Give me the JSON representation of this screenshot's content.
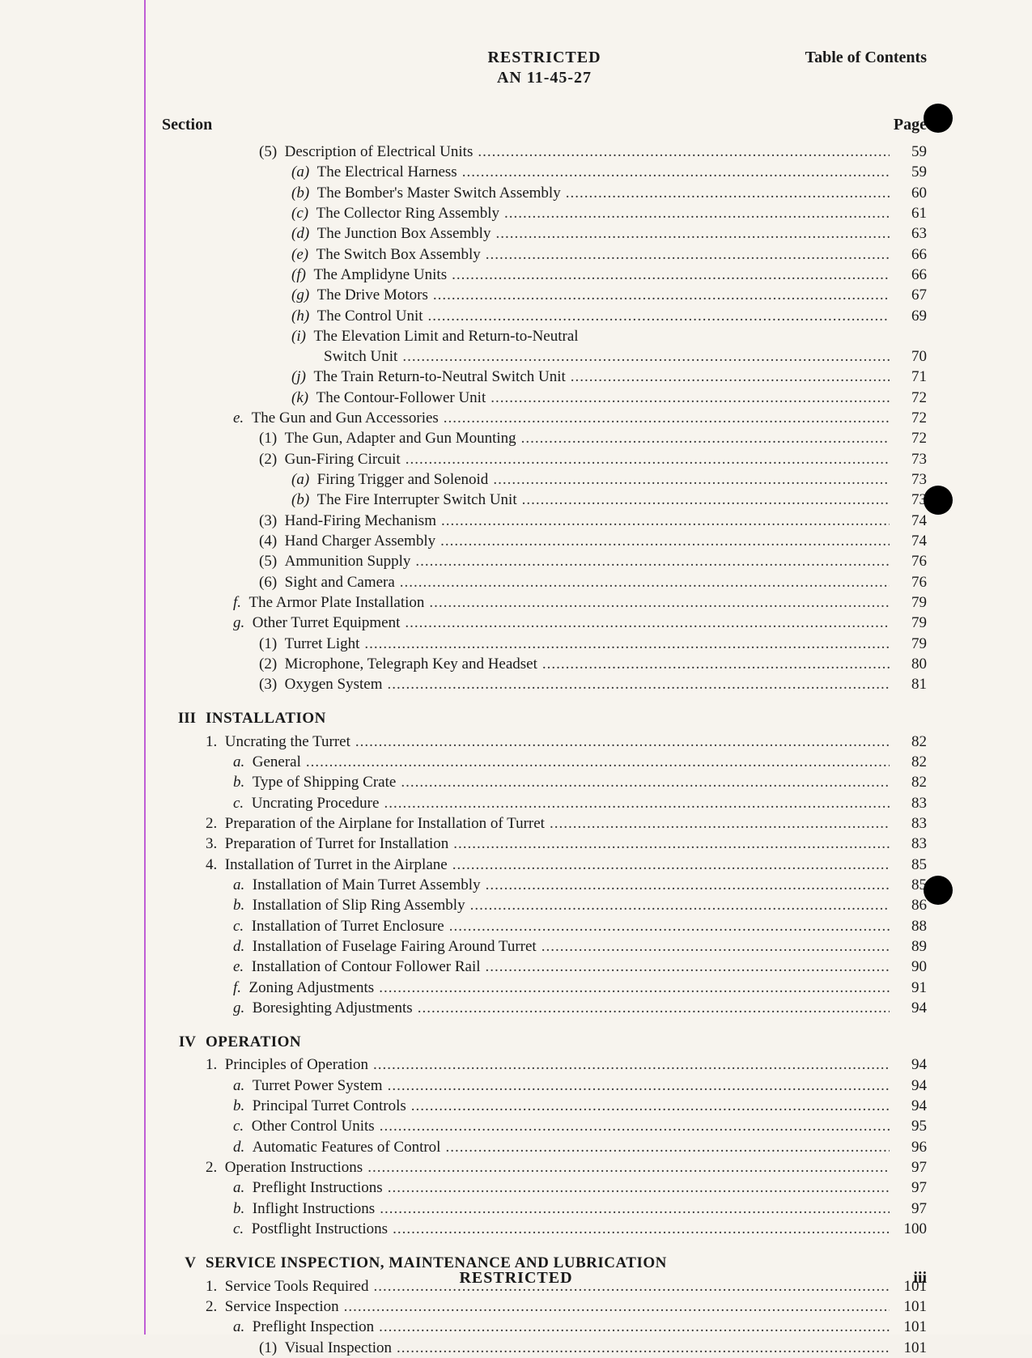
{
  "header": {
    "classification": "RESTRICTED",
    "doc_number": "AN 11-45-27",
    "right_label": "Table of Contents"
  },
  "columns": {
    "left": "Section",
    "right": "Page"
  },
  "footer": {
    "classification": "RESTRICTED",
    "page_number": "iii"
  },
  "sections": [
    {
      "roman": "",
      "title": "",
      "entries": [
        {
          "indent": 2,
          "label": "(5)",
          "title": "Description of Electrical Units",
          "page": "59",
          "label_style": ""
        },
        {
          "indent": 3,
          "label": "(a)",
          "title": "The Electrical Harness",
          "page": "59",
          "label_style": "italic"
        },
        {
          "indent": 3,
          "label": "(b)",
          "title": "The Bomber's Master Switch Assembly",
          "page": "60",
          "label_style": "italic"
        },
        {
          "indent": 3,
          "label": "(c)",
          "title": "The Collector Ring Assembly",
          "page": "61",
          "label_style": "italic"
        },
        {
          "indent": 3,
          "label": "(d)",
          "title": "The Junction Box Assembly",
          "page": "63",
          "label_style": "italic"
        },
        {
          "indent": 3,
          "label": "(e)",
          "title": "The Switch Box Assembly",
          "page": "66",
          "label_style": "italic"
        },
        {
          "indent": 3,
          "label": "(f)",
          "title": "The Amplidyne Units",
          "page": "66",
          "label_style": "italic"
        },
        {
          "indent": 3,
          "label": "(g)",
          "title": "The Drive Motors",
          "page": "67",
          "label_style": "italic"
        },
        {
          "indent": 3,
          "label": "(h)",
          "title": "The Control Unit",
          "page": "69",
          "label_style": "italic"
        },
        {
          "indent": 3,
          "label": "(i)",
          "title": "The Elevation Limit and Return-to-Neutral",
          "page": "",
          "label_style": "italic"
        },
        {
          "indent": 4,
          "label": "",
          "title": "Switch Unit",
          "page": "70",
          "label_style": ""
        },
        {
          "indent": 3,
          "label": "(j)",
          "title": "The Train Return-to-Neutral Switch Unit",
          "page": "71",
          "label_style": "italic"
        },
        {
          "indent": 3,
          "label": "(k)",
          "title": "The Contour-Follower Unit",
          "page": "72",
          "label_style": "italic"
        },
        {
          "indent": 1,
          "label": "e.",
          "title": "The Gun and Gun Accessories",
          "page": "72",
          "label_style": "italic"
        },
        {
          "indent": 2,
          "label": "(1)",
          "title": "The Gun, Adapter and Gun Mounting",
          "page": "72",
          "label_style": ""
        },
        {
          "indent": 2,
          "label": "(2)",
          "title": "Gun-Firing Circuit",
          "page": "73",
          "label_style": ""
        },
        {
          "indent": 3,
          "label": "(a)",
          "title": "Firing Trigger and Solenoid",
          "page": "73",
          "label_style": "italic"
        },
        {
          "indent": 3,
          "label": "(b)",
          "title": "The Fire Interrupter Switch Unit",
          "page": "73",
          "label_style": "italic"
        },
        {
          "indent": 2,
          "label": "(3)",
          "title": "Hand-Firing Mechanism",
          "page": "74",
          "label_style": ""
        },
        {
          "indent": 2,
          "label": "(4)",
          "title": "Hand Charger Assembly",
          "page": "74",
          "label_style": ""
        },
        {
          "indent": 2,
          "label": "(5)",
          "title": "Ammunition Supply",
          "page": "76",
          "label_style": ""
        },
        {
          "indent": 2,
          "label": "(6)",
          "title": "Sight and Camera",
          "page": "76",
          "label_style": ""
        },
        {
          "indent": 1,
          "label": "f.",
          "title": "The Armor Plate Installation",
          "page": "79",
          "label_style": "italic"
        },
        {
          "indent": 1,
          "label": "g.",
          "title": "Other Turret Equipment",
          "page": "79",
          "label_style": "italic"
        },
        {
          "indent": 2,
          "label": "(1)",
          "title": "Turret Light",
          "page": "79",
          "label_style": ""
        },
        {
          "indent": 2,
          "label": "(2)",
          "title": "Microphone, Telegraph Key and Headset",
          "page": "80",
          "label_style": ""
        },
        {
          "indent": 2,
          "label": "(3)",
          "title": "Oxygen System",
          "page": "81",
          "label_style": ""
        }
      ]
    },
    {
      "roman": "III",
      "title": "INSTALLATION",
      "entries": [
        {
          "indent": 0,
          "label": "1.",
          "title": "Uncrating the Turret",
          "page": "82",
          "label_style": ""
        },
        {
          "indent": 1,
          "label": "a.",
          "title": "General",
          "page": "82",
          "label_style": "italic"
        },
        {
          "indent": 1,
          "label": "b.",
          "title": "Type of Shipping Crate",
          "page": "82",
          "label_style": "italic"
        },
        {
          "indent": 1,
          "label": "c.",
          "title": "Uncrating Procedure",
          "page": "83",
          "label_style": "italic"
        },
        {
          "indent": 0,
          "label": "2.",
          "title": "Preparation of the Airplane for Installation of Turret",
          "page": "83",
          "label_style": ""
        },
        {
          "indent": 0,
          "label": "3.",
          "title": "Preparation of Turret for Installation",
          "page": "83",
          "label_style": ""
        },
        {
          "indent": 0,
          "label": "4.",
          "title": "Installation of Turret in the Airplane",
          "page": "85",
          "label_style": ""
        },
        {
          "indent": 1,
          "label": "a.",
          "title": "Installation of Main Turret Assembly",
          "page": "85",
          "label_style": "italic"
        },
        {
          "indent": 1,
          "label": "b.",
          "title": "Installation of Slip Ring Assembly",
          "page": "86",
          "label_style": "italic"
        },
        {
          "indent": 1,
          "label": "c.",
          "title": "Installation of Turret Enclosure",
          "page": "88",
          "label_style": "italic"
        },
        {
          "indent": 1,
          "label": "d.",
          "title": "Installation of Fuselage Fairing Around Turret",
          "page": "89",
          "label_style": "italic"
        },
        {
          "indent": 1,
          "label": "e.",
          "title": "Installation of Contour Follower Rail",
          "page": "90",
          "label_style": "italic"
        },
        {
          "indent": 1,
          "label": "f.",
          "title": "Zoning Adjustments",
          "page": "91",
          "label_style": "italic"
        },
        {
          "indent": 1,
          "label": "g.",
          "title": "Boresighting Adjustments",
          "page": "94",
          "label_style": "italic"
        }
      ]
    },
    {
      "roman": "IV",
      "title": "OPERATION",
      "entries": [
        {
          "indent": 0,
          "label": "1.",
          "title": "Principles of Operation",
          "page": "94",
          "label_style": ""
        },
        {
          "indent": 1,
          "label": "a.",
          "title": "Turret Power System",
          "page": "94",
          "label_style": "italic"
        },
        {
          "indent": 1,
          "label": "b.",
          "title": "Principal Turret Controls",
          "page": "94",
          "label_style": "italic"
        },
        {
          "indent": 1,
          "label": "c.",
          "title": "Other Control Units",
          "page": "95",
          "label_style": "italic"
        },
        {
          "indent": 1,
          "label": "d.",
          "title": "Automatic Features of Control",
          "page": "96",
          "label_style": "italic"
        },
        {
          "indent": 0,
          "label": "2.",
          "title": "Operation Instructions",
          "page": "97",
          "label_style": ""
        },
        {
          "indent": 1,
          "label": "a.",
          "title": "Preflight Instructions",
          "page": "97",
          "label_style": "italic"
        },
        {
          "indent": 1,
          "label": "b.",
          "title": "Inflight Instructions",
          "page": "97",
          "label_style": "italic"
        },
        {
          "indent": 1,
          "label": "c.",
          "title": "Postflight Instructions",
          "page": "100",
          "label_style": "italic"
        }
      ]
    },
    {
      "roman": "V",
      "title": "SERVICE INSPECTION, MAINTENANCE AND LUBRICATION",
      "entries": [
        {
          "indent": 0,
          "label": "1.",
          "title": "Service Tools Required",
          "page": "101",
          "label_style": ""
        },
        {
          "indent": 0,
          "label": "2.",
          "title": "Service Inspection",
          "page": "101",
          "label_style": ""
        },
        {
          "indent": 1,
          "label": "a.",
          "title": "Preflight Inspection",
          "page": "101",
          "label_style": "italic"
        },
        {
          "indent": 2,
          "label": "(1)",
          "title": "Visual Inspection",
          "page": "101",
          "label_style": ""
        }
      ]
    }
  ]
}
